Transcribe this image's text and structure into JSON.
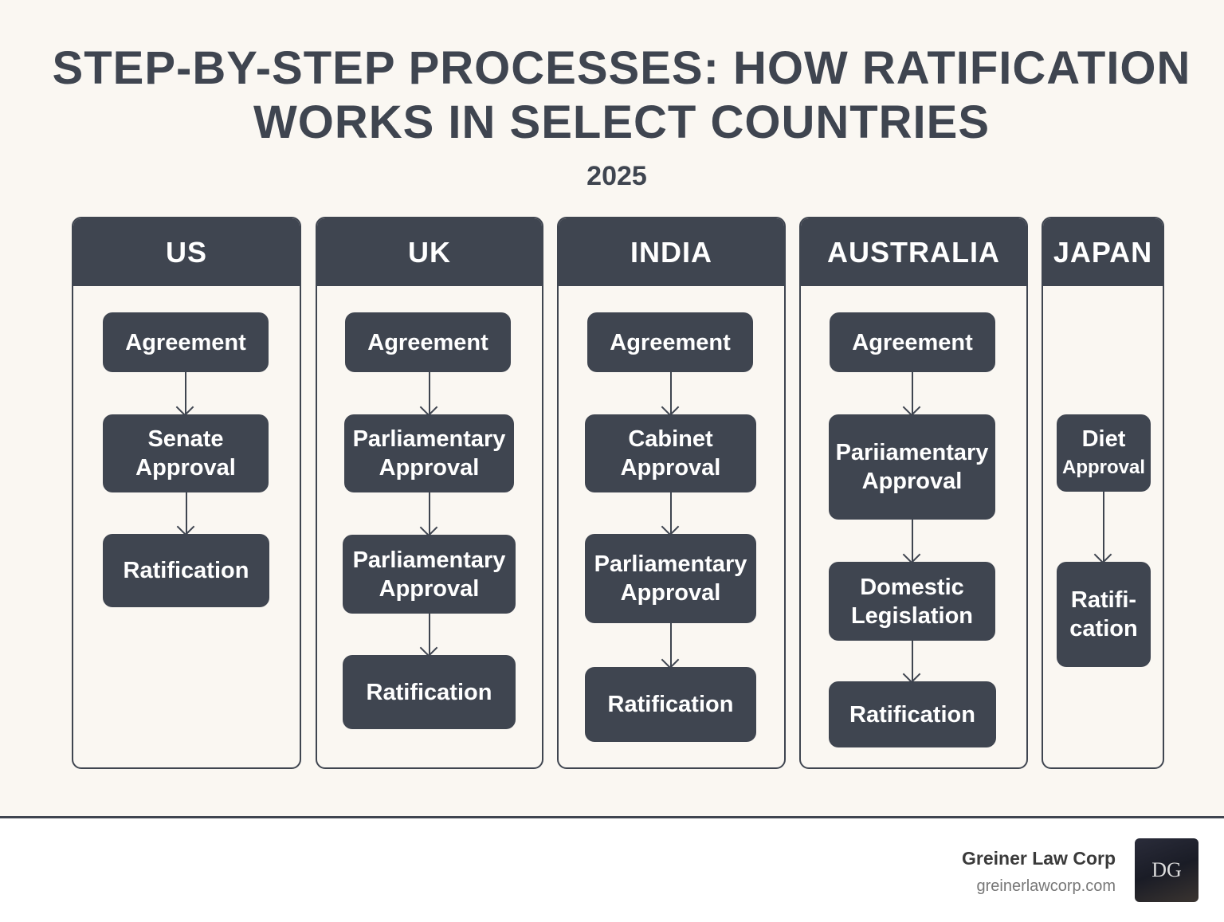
{
  "title_lines": [
    "STEP-BY-STEP PROCESSES: HOW RATIFICATION",
    "WORKS IN SELECT COUNTRIES"
  ],
  "subtitle": "2025",
  "columns": [
    {
      "name": "US",
      "steps": [
        [
          "Agreement"
        ],
        [
          "Senate",
          "Approval"
        ],
        [
          "Ratification"
        ]
      ]
    },
    {
      "name": "UK",
      "steps": [
        [
          "Agreement"
        ],
        [
          "Parliamentary",
          "Approval"
        ],
        [
          "Parliamentary",
          "Approval"
        ],
        [
          "Ratification"
        ]
      ]
    },
    {
      "name": "INDIA",
      "steps": [
        [
          "Agreement"
        ],
        [
          "Cabinet",
          "Approval"
        ],
        [
          "Parliamentary",
          "Approval"
        ],
        [
          "Ratification"
        ]
      ]
    },
    {
      "name": "AUSTRALIA",
      "steps": [
        [
          "Agreement"
        ],
        [
          "Pariiamentary",
          "Approval"
        ],
        [
          "Domestic",
          "Legislation"
        ],
        [
          "Ratification"
        ]
      ]
    },
    {
      "name": "JAPAN",
      "steps": [
        [
          "Diet",
          "Approval"
        ],
        [
          "Ratifi-",
          "cation"
        ]
      ]
    }
  ],
  "footer": {
    "brand": "Greiner Law Corp",
    "url": "greinerlawcorp.com",
    "logo_text": "DG"
  },
  "colors": {
    "background": "#faf7f2",
    "dark": "#3f4550"
  }
}
